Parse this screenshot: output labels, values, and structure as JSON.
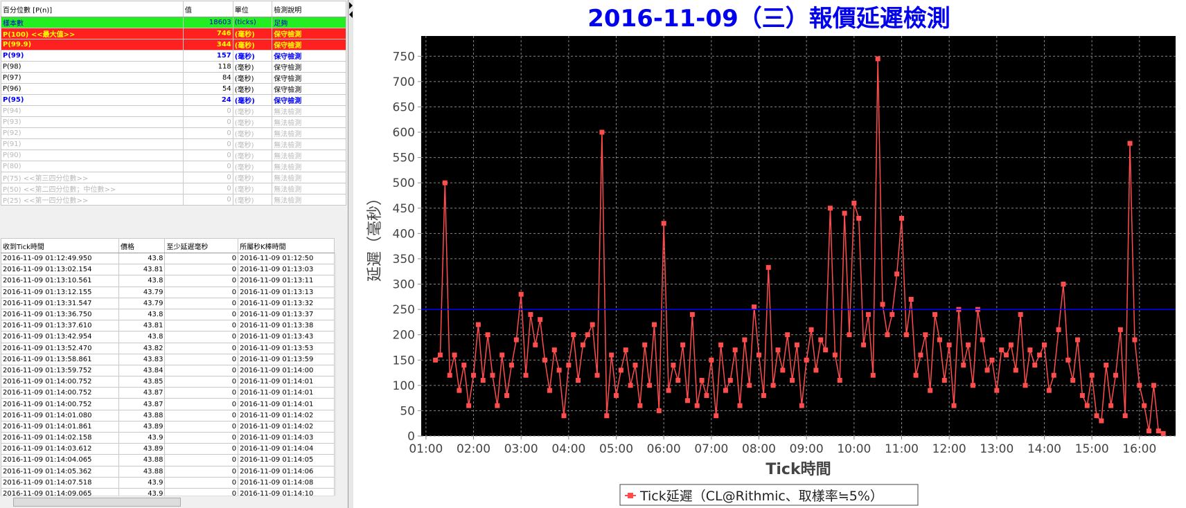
{
  "percentile_table": {
    "columns": [
      "百分位數 [P(n)]",
      "值",
      "單位",
      "檢測說明"
    ],
    "rows": [
      [
        "樣本數",
        18603,
        "(ticks)",
        "足夠"
      ],
      [
        "P(100)  <<最大值>>",
        746,
        "(毫秒)",
        "保守檢測"
      ],
      [
        "P(99.9)",
        344,
        "(毫秒)",
        "保守檢測"
      ],
      [
        "P(99)",
        157,
        "(毫秒)",
        "保守檢測"
      ],
      [
        "P(98)",
        118,
        "(毫秒)",
        "保守檢測"
      ],
      [
        "P(97)",
        84,
        "(毫秒)",
        "保守檢測"
      ],
      [
        "P(96)",
        54,
        "(毫秒)",
        "保守檢測"
      ],
      [
        "P(95)",
        24,
        "(毫秒)",
        "保守檢測"
      ],
      [
        "P(94)",
        0,
        "(毫秒)",
        "無法檢測"
      ],
      [
        "P(93)",
        0,
        "(毫秒)",
        "無法檢測"
      ],
      [
        "P(92)",
        0,
        "(毫秒)",
        "無法檢測"
      ],
      [
        "P(91)",
        0,
        "(毫秒)",
        "無法檢測"
      ],
      [
        "P(90)",
        0,
        "(毫秒)",
        "無法檢測"
      ],
      [
        "P(80)",
        0,
        "(毫秒)",
        "無法檢測"
      ],
      [
        "P(75)  <<第三四分位數>>",
        0,
        "(毫秒)",
        "無法檢測"
      ],
      [
        "P(50)  <<第二四分位數；中位數>>",
        0,
        "(毫秒)",
        "無法檢測"
      ],
      [
        "P(25)  <<第一四分位數>>",
        0,
        "(毫秒)",
        "無法檢測"
      ]
    ]
  },
  "tick_table": {
    "columns": [
      "收到Tick時間",
      "價格",
      "至少延遲毫秒",
      "所屬秒K棒時間"
    ],
    "rows": [
      [
        "2016-11-09 01:12:49.950",
        43.8,
        0,
        "2016-11-09 01:12:50"
      ],
      [
        "2016-11-09 01:13:02.154",
        43.81,
        0,
        "2016-11-09 01:13:03"
      ],
      [
        "2016-11-09 01:13:10.561",
        43.8,
        0,
        "2016-11-09 01:13:11"
      ],
      [
        "2016-11-09 01:13:12.155",
        43.79,
        0,
        "2016-11-09 01:13:13"
      ],
      [
        "2016-11-09 01:13:31.547",
        43.79,
        0,
        "2016-11-09 01:13:32"
      ],
      [
        "2016-11-09 01:13:36.750",
        43.8,
        0,
        "2016-11-09 01:13:37"
      ],
      [
        "2016-11-09 01:13:37.610",
        43.81,
        0,
        "2016-11-09 01:13:38"
      ],
      [
        "2016-11-09 01:13:42.954",
        43.8,
        0,
        "2016-11-09 01:13:43"
      ],
      [
        "2016-11-09 01:13:52.470",
        43.82,
        0,
        "2016-11-09 01:13:53"
      ],
      [
        "2016-11-09 01:13:58.861",
        43.83,
        0,
        "2016-11-09 01:13:59"
      ],
      [
        "2016-11-09 01:13:59.752",
        43.84,
        0,
        "2016-11-09 01:14:00"
      ],
      [
        "2016-11-09 01:14:00.752",
        43.85,
        0,
        "2016-11-09 01:14:01"
      ],
      [
        "2016-11-09 01:14:00.752",
        43.87,
        0,
        "2016-11-09 01:14:01"
      ],
      [
        "2016-11-09 01:14:00.752",
        43.87,
        0,
        "2016-11-09 01:14:01"
      ],
      [
        "2016-11-09 01:14:01.080",
        43.88,
        0,
        "2016-11-09 01:14:02"
      ],
      [
        "2016-11-09 01:14:01.861",
        43.89,
        0,
        "2016-11-09 01:14:02"
      ],
      [
        "2016-11-09 01:14:02.158",
        43.9,
        0,
        "2016-11-09 01:14:03"
      ],
      [
        "2016-11-09 01:14:03.612",
        43.89,
        0,
        "2016-11-09 01:14:04"
      ],
      [
        "2016-11-09 01:14:04.065",
        43.88,
        0,
        "2016-11-09 01:14:05"
      ],
      [
        "2016-11-09 01:14:05.362",
        43.88,
        0,
        "2016-11-09 01:14:06"
      ],
      [
        "2016-11-09 01:14:07.518",
        43.9,
        0,
        "2016-11-09 01:14:08"
      ],
      [
        "2016-11-09 01:14:09.065",
        43.9,
        0,
        "2016-11-09 01:14:10"
      ]
    ]
  },
  "chart_data": {
    "type": "line",
    "title": "2016-11-09（三）報價延遲檢測",
    "x_label": "Tick時間",
    "y_label": "延遲（毫秒）",
    "xlim": [
      0.9,
      16.76
    ],
    "ylim": [
      0,
      790
    ],
    "xticks": [
      {
        "value": 1,
        "label": "01:00"
      },
      {
        "value": 2,
        "label": "02:00"
      },
      {
        "value": 3,
        "label": "03:00"
      },
      {
        "value": 4,
        "label": "04:00"
      },
      {
        "value": 5,
        "label": "05:00"
      },
      {
        "value": 6,
        "label": "06:00"
      },
      {
        "value": 7,
        "label": "07:00"
      },
      {
        "value": 8,
        "label": "08:00"
      },
      {
        "value": 9,
        "label": "09:00"
      },
      {
        "value": 10,
        "label": "10:00"
      },
      {
        "value": 11,
        "label": "11:00"
      },
      {
        "value": 12,
        "label": "12:00"
      },
      {
        "value": 13,
        "label": "13:00"
      },
      {
        "value": 14,
        "label": "14:00"
      },
      {
        "value": 15,
        "label": "15:00"
      },
      {
        "value": 16,
        "label": "16:00"
      }
    ],
    "yticks": [
      0,
      50,
      100,
      150,
      200,
      250,
      300,
      350,
      400,
      450,
      500,
      550,
      600,
      650,
      700,
      750
    ],
    "grid": true,
    "reference_line": {
      "value": 250,
      "color": "#0000ff"
    },
    "series": [
      {
        "name": "Tick延遲（CL@Rithmic、取樣率≒5%）",
        "color": "#ff4d4d",
        "x": [
          1.2,
          1.3,
          1.4,
          1.5,
          1.6,
          1.7,
          1.8,
          1.9,
          2.0,
          2.1,
          2.2,
          2.3,
          2.4,
          2.5,
          2.6,
          2.7,
          2.8,
          2.9,
          3.0,
          3.1,
          3.2,
          3.3,
          3.4,
          3.5,
          3.6,
          3.7,
          3.8,
          3.9,
          4.0,
          4.1,
          4.2,
          4.3,
          4.4,
          4.5,
          4.6,
          4.7,
          4.8,
          4.9,
          5.0,
          5.1,
          5.2,
          5.3,
          5.4,
          5.5,
          5.6,
          5.7,
          5.8,
          5.9,
          6.0,
          6.1,
          6.2,
          6.3,
          6.4,
          6.5,
          6.6,
          6.7,
          6.8,
          6.9,
          7.0,
          7.1,
          7.2,
          7.3,
          7.4,
          7.5,
          7.6,
          7.7,
          7.8,
          7.9,
          8.0,
          8.1,
          8.2,
          8.3,
          8.4,
          8.5,
          8.6,
          8.7,
          8.8,
          8.9,
          9.0,
          9.1,
          9.2,
          9.3,
          9.4,
          9.5,
          9.6,
          9.7,
          9.8,
          9.9,
          10.0,
          10.1,
          10.2,
          10.3,
          10.4,
          10.5,
          10.6,
          10.7,
          10.8,
          10.9,
          11.0,
          11.1,
          11.2,
          11.3,
          11.4,
          11.5,
          11.6,
          11.7,
          11.8,
          11.9,
          12.0,
          12.1,
          12.2,
          12.3,
          12.4,
          12.5,
          12.6,
          12.7,
          12.8,
          12.9,
          13.0,
          13.1,
          13.2,
          13.3,
          13.4,
          13.5,
          13.6,
          13.7,
          13.8,
          13.9,
          14.0,
          14.1,
          14.2,
          14.3,
          14.4,
          14.5,
          14.6,
          14.7,
          14.8,
          14.9,
          15.0,
          15.1,
          15.2,
          15.3,
          15.4,
          15.5,
          15.6,
          15.7,
          15.8,
          15.9,
          16.0,
          16.1,
          16.2,
          16.3,
          16.4,
          16.5
        ],
        "values": [
          150,
          160,
          500,
          120,
          160,
          90,
          140,
          60,
          120,
          220,
          110,
          200,
          120,
          60,
          160,
          80,
          140,
          190,
          280,
          120,
          240,
          180,
          230,
          150,
          90,
          170,
          130,
          40,
          140,
          200,
          110,
          180,
          200,
          220,
          120,
          600,
          40,
          160,
          80,
          130,
          170,
          100,
          140,
          60,
          180,
          100,
          220,
          50,
          420,
          90,
          140,
          110,
          180,
          70,
          240,
          60,
          110,
          80,
          150,
          40,
          180,
          90,
          110,
          170,
          60,
          190,
          100,
          255,
          160,
          80,
          333,
          100,
          170,
          130,
          200,
          110,
          180,
          60,
          150,
          210,
          130,
          190,
          170,
          450,
          160,
          110,
          440,
          200,
          460,
          430,
          180,
          240,
          120,
          745,
          260,
          200,
          240,
          320,
          430,
          200,
          270,
          120,
          160,
          200,
          90,
          240,
          190,
          110,
          180,
          60,
          250,
          140,
          180,
          100,
          250,
          190,
          130,
          150,
          90,
          170,
          160,
          180,
          130,
          240,
          100,
          170,
          140,
          160,
          180,
          90,
          120,
          210,
          300,
          150,
          110,
          190,
          80,
          60,
          120,
          40,
          30,
          140,
          60,
          120,
          210,
          40,
          578,
          190,
          100,
          60,
          10,
          100,
          10,
          5
        ]
      }
    ]
  }
}
